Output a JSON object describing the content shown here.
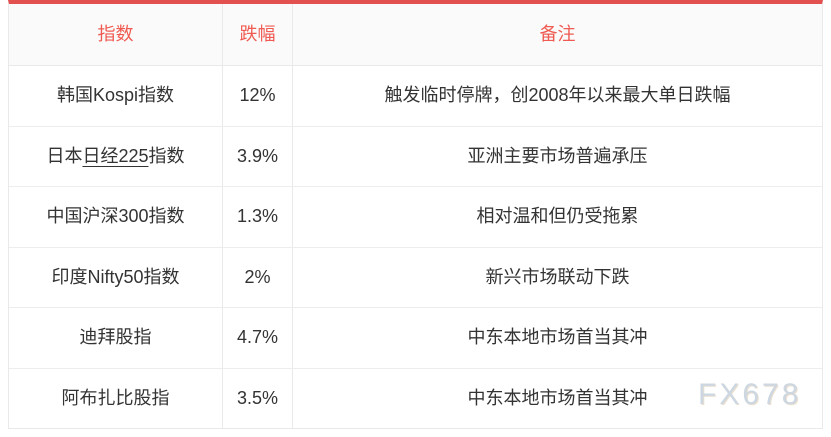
{
  "chart_data": {
    "type": "table",
    "columns": [
      "指数",
      "跌幅",
      "备注"
    ],
    "rows": [
      [
        "韩国Kospi指数",
        "12%",
        "触发临时停牌，创2008年以来最大单日跌幅"
      ],
      [
        "日本日经225指数",
        "3.9%",
        "亚洲主要市场普遍承压"
      ],
      [
        "中国沪深300指数",
        "1.3%",
        "相对温和但仍受拖累"
      ],
      [
        "印度Nifty50指数",
        "2%",
        "新兴市场联动下跌"
      ],
      [
        "迪拜股指",
        "4.7%",
        "中东本地市场首当其冲"
      ],
      [
        "阿布扎比股指",
        "3.5%",
        "中东本地市场首当其冲"
      ]
    ],
    "declines_percent": [
      12,
      3.9,
      1.3,
      2,
      4.7,
      3.5
    ],
    "layout_hints": "header row tinted with red accent bar on top; all cells center-aligned; grid borders light gray"
  },
  "table": {
    "headers": [
      {
        "label": "指数"
      },
      {
        "label": "跌幅"
      },
      {
        "label": "备注"
      }
    ],
    "rows": [
      {
        "index_parts": [
          {
            "text": "韩国Kospi指数",
            "underline": false
          }
        ],
        "decline": "12%",
        "note": "触发临时停牌，创2008年以来最大单日跌幅"
      },
      {
        "index_parts": [
          {
            "text": "日本",
            "underline": false
          },
          {
            "text": "日经225",
            "underline": true
          },
          {
            "text": "指数",
            "underline": false
          }
        ],
        "decline": "3.9%",
        "note": "亚洲主要市场普遍承压"
      },
      {
        "index_parts": [
          {
            "text": "中国沪深300指数",
            "underline": false
          }
        ],
        "decline": "1.3%",
        "note": "相对温和但仍受拖累"
      },
      {
        "index_parts": [
          {
            "text": "印度Nifty50指数",
            "underline": false
          }
        ],
        "decline": "2%",
        "note": "新兴市场联动下跌"
      },
      {
        "index_parts": [
          {
            "text": "迪拜股指",
            "underline": false
          }
        ],
        "decline": "4.7%",
        "note": "中东本地市场首当其冲"
      },
      {
        "index_parts": [
          {
            "text": "阿布扎比股指",
            "underline": false
          }
        ],
        "decline": "3.5%",
        "note": "中东本地市场首当其冲"
      }
    ]
  },
  "watermark": "FX678",
  "colors": {
    "accent_bar": "#e25050",
    "header_text": "#ef5b52",
    "header_bg": "#fafafa",
    "border": "#e9e9e9",
    "body_text": "#333333",
    "watermark": "#ccd7e1"
  }
}
